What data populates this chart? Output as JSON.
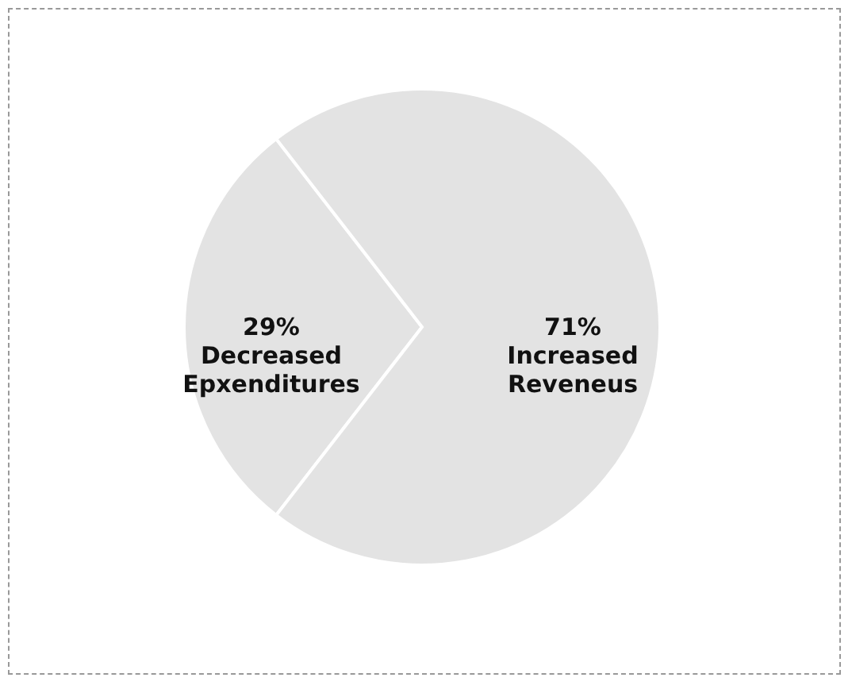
{
  "chart_data": {
    "type": "pie",
    "categories": [
      "Decreased Epxenditures",
      "Increased Reveneus"
    ],
    "values": [
      29,
      71
    ],
    "colors": [
      "#e3e3e3",
      "#e3e3e3"
    ],
    "value_labels": [
      "29%",
      "71%"
    ],
    "legend": false
  }
}
